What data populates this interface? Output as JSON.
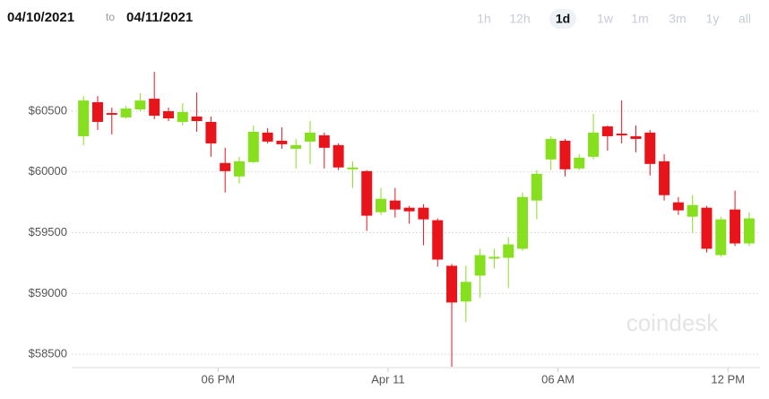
{
  "header": {
    "from": "04/10/2021",
    "to_word": "to",
    "to": "04/11/2021",
    "ranges": [
      "1h",
      "12h",
      "1d",
      "1w",
      "1m",
      "3m",
      "1y",
      "all"
    ],
    "active_range": "1d"
  },
  "watermark": "coindesk",
  "chart_data": {
    "type": "candlestick",
    "x": [
      "2021-04-10T13:15",
      "2021-04-10T13:45",
      "2021-04-10T14:15",
      "2021-04-10T14:45",
      "2021-04-10T15:15",
      "2021-04-10T15:45",
      "2021-04-10T16:15",
      "2021-04-10T16:45",
      "2021-04-10T17:15",
      "2021-04-10T17:45",
      "2021-04-10T18:15",
      "2021-04-10T18:45",
      "2021-04-10T19:15",
      "2021-04-10T19:45",
      "2021-04-10T20:15",
      "2021-04-10T20:45",
      "2021-04-10T21:15",
      "2021-04-10T21:45",
      "2021-04-10T22:15",
      "2021-04-10T22:45",
      "2021-04-10T23:15",
      "2021-04-10T23:45",
      "2021-04-11T00:15",
      "2021-04-11T00:45",
      "2021-04-11T01:15",
      "2021-04-11T01:45",
      "2021-04-11T02:15",
      "2021-04-11T02:45",
      "2021-04-11T03:15",
      "2021-04-11T03:45",
      "2021-04-11T04:15",
      "2021-04-11T04:45",
      "2021-04-11T05:15",
      "2021-04-11T05:45",
      "2021-04-11T06:15",
      "2021-04-11T06:45",
      "2021-04-11T07:15",
      "2021-04-11T07:45",
      "2021-04-11T08:15",
      "2021-04-11T08:45",
      "2021-04-11T09:15",
      "2021-04-11T09:45",
      "2021-04-11T10:15",
      "2021-04-11T10:45",
      "2021-04-11T11:15",
      "2021-04-11T11:45",
      "2021-04-11T12:15",
      "2021-04-11T12:45"
    ],
    "open": [
      60294,
      60574,
      60485,
      60449,
      60515,
      60603,
      60500,
      60412,
      60456,
      60412,
      60074,
      59963,
      60081,
      60324,
      60257,
      60191,
      60250,
      60302,
      60221,
      60022,
      60007,
      59669,
      59765,
      59706,
      59706,
      59603,
      59228,
      58934,
      59147,
      59287,
      59294,
      59368,
      59765,
      60103,
      60257,
      60029,
      60125,
      60375,
      60316,
      60294,
      60324,
      60088,
      59750,
      59632,
      59706,
      59316,
      59691,
      59412
    ],
    "high": [
      60625,
      60625,
      60529,
      60544,
      60647,
      60824,
      60529,
      60566,
      60654,
      60456,
      60199,
      60125,
      60382,
      60360,
      60368,
      60272,
      60419,
      60324,
      60235,
      60088,
      60015,
      59868,
      59868,
      59721,
      59735,
      59618,
      59243,
      59228,
      59368,
      59368,
      59463,
      59831,
      60015,
      60294,
      60272,
      60147,
      60478,
      60382,
      60588,
      60382,
      60346,
      60147,
      59794,
      59809,
      59721,
      59632,
      59846,
      59669
    ],
    "low": [
      60221,
      60346,
      60309,
      60441,
      60500,
      60434,
      60419,
      60382,
      60331,
      60125,
      59831,
      59904,
      60074,
      60235,
      60191,
      60029,
      60066,
      60029,
      60015,
      59868,
      59515,
      59647,
      59625,
      59574,
      59397,
      59221,
      58397,
      58765,
      58963,
      59206,
      59044,
      59353,
      59610,
      60015,
      59963,
      60015,
      60103,
      60176,
      60235,
      60162,
      59971,
      59765,
      59647,
      59500,
      59338,
      59301,
      59390,
      59390
    ],
    "close": [
      60588,
      60412,
      60471,
      60522,
      60588,
      60463,
      60441,
      60493,
      60419,
      60235,
      60007,
      60088,
      60331,
      60250,
      60228,
      60221,
      60324,
      60199,
      60037,
      60037,
      59640,
      59779,
      59691,
      59676,
      59610,
      59279,
      58926,
      59096,
      59316,
      59302,
      59404,
      59794,
      59985,
      60272,
      60022,
      60118,
      60324,
      60294,
      60301,
      60272,
      60066,
      59809,
      59684,
      59728,
      59368,
      59610,
      59412,
      59618
    ],
    "up_color": "#86e01e",
    "down_color": "#e8141a",
    "ylim": [
      58390,
      61120
    ],
    "yticks": [
      {
        "value": 58500,
        "label": "$58500"
      },
      {
        "value": 59000,
        "label": "$59000"
      },
      {
        "value": 59500,
        "label": "$59500"
      },
      {
        "value": 60000,
        "label": "$60000"
      },
      {
        "value": 60500,
        "label": "$60500"
      }
    ],
    "xlim": [
      "2021-04-10T12:50",
      "2021-04-11T13:08"
    ],
    "xticks": [
      {
        "value": "2021-04-10T18:00",
        "label": "06 PM"
      },
      {
        "value": "2021-04-11T00:00",
        "label": "Apr 11"
      },
      {
        "value": "2021-04-11T06:00",
        "label": "06 AM"
      },
      {
        "value": "2021-04-11T12:00",
        "label": "12 PM"
      }
    ],
    "grid": true
  }
}
